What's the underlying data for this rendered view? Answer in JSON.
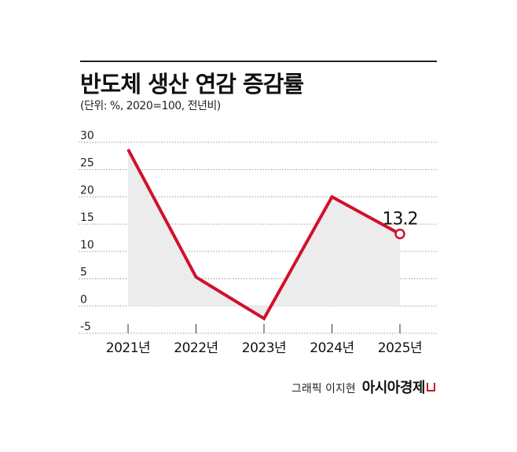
{
  "title": "반도체 생산 연감 증감률",
  "subtitle": "(단위: %, 2020=100, 전년비)",
  "credit": "그래픽 이지현",
  "brand": "아시아경제",
  "colors": {
    "line": "#d0112b",
    "area": "#ececec",
    "rule": "#222222",
    "grid": "#9a9a9a"
  },
  "chart_data": {
    "type": "line",
    "categories": [
      "2021년",
      "2022년",
      "2023년",
      "2024년",
      "2025년"
    ],
    "series": [
      {
        "name": "",
        "values": [
          28.7,
          5.3,
          -2.3,
          20.0,
          13.2
        ]
      }
    ],
    "yticks": [
      "30",
      "25",
      "20",
      "15",
      "10",
      "5",
      "0",
      "-5"
    ],
    "ylim": [
      -5,
      30
    ],
    "annotation": "13.2",
    "grid": "dotted horizontal",
    "legend": "none"
  }
}
